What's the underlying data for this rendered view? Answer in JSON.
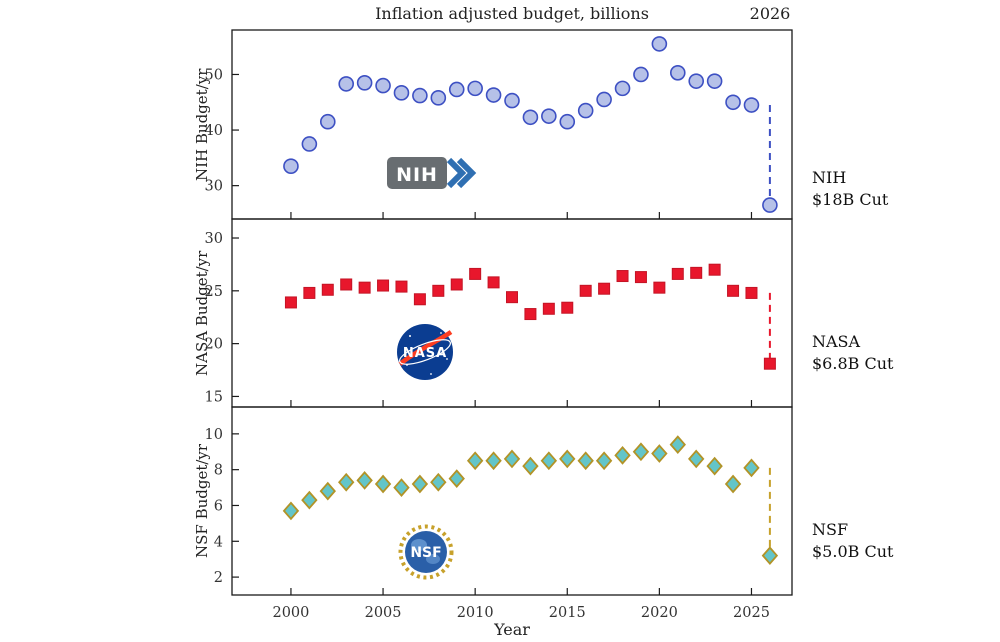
{
  "figure": {
    "label_2026": "2026"
  },
  "chart_data": [
    {
      "type": "scatter",
      "series": "NIH",
      "title": "Inflation adjusted budget, billions",
      "ylabel": "NIH Budget/yr",
      "x": [
        2000,
        2001,
        2002,
        2003,
        2004,
        2005,
        2006,
        2007,
        2008,
        2009,
        2010,
        2011,
        2012,
        2013,
        2014,
        2015,
        2016,
        2017,
        2018,
        2019,
        2020,
        2021,
        2022,
        2023,
        2024,
        2025,
        2026
      ],
      "y": [
        33.5,
        37.5,
        41.5,
        48.3,
        48.5,
        48.0,
        46.7,
        46.2,
        45.8,
        47.3,
        47.5,
        46.3,
        45.3,
        42.3,
        42.5,
        41.5,
        43.5,
        45.5,
        47.5,
        50.0,
        55.5,
        50.3,
        48.8,
        48.8,
        45.0,
        44.5,
        26.5
      ],
      "xlim": [
        1996.8,
        2027.2
      ],
      "ylim": [
        24,
        58
      ],
      "xticks": [
        2000,
        2005,
        2010,
        2015,
        2020,
        2025
      ],
      "yticks": [
        30,
        40,
        50
      ],
      "marker": "circle",
      "marker_fill": "#b6c1e8",
      "marker_edge": "#3d50c3",
      "line_color": "#3d50c3",
      "dashed_drop": {
        "x": 2026,
        "from": 44.5,
        "to": 26.5
      },
      "cut_label": {
        "line1": "NIH",
        "line2": "$18B Cut"
      }
    },
    {
      "type": "scatter",
      "series": "NASA",
      "ylabel": "NASA Budget/yr",
      "x": [
        2000,
        2001,
        2002,
        2003,
        2004,
        2005,
        2006,
        2007,
        2008,
        2009,
        2010,
        2011,
        2012,
        2013,
        2014,
        2015,
        2016,
        2017,
        2018,
        2019,
        2020,
        2021,
        2022,
        2023,
        2024,
        2025,
        2026
      ],
      "y": [
        23.9,
        24.8,
        25.1,
        25.6,
        25.3,
        25.5,
        25.4,
        24.2,
        25.0,
        25.6,
        26.6,
        25.8,
        24.4,
        22.8,
        23.3,
        23.4,
        25.0,
        25.2,
        26.4,
        26.3,
        25.3,
        26.6,
        26.7,
        27.0,
        25.0,
        24.8,
        18.1
      ],
      "xlim": [
        1996.8,
        2027.2
      ],
      "ylim": [
        14,
        31.8
      ],
      "xticks": [
        2000,
        2005,
        2010,
        2015,
        2020,
        2025
      ],
      "yticks": [
        15,
        20,
        25,
        30
      ],
      "marker": "square",
      "marker_fill": "#e8172c",
      "marker_edge": "#c41425",
      "line_color": "#e8172c",
      "dashed_drop": {
        "x": 2026,
        "from": 24.8,
        "to": 18.1
      },
      "cut_label": {
        "line1": "NASA",
        "line2": "$6.8B Cut"
      }
    },
    {
      "type": "scatter",
      "series": "NSF",
      "ylabel": "NSF Budget/yr",
      "xlabel": "Year",
      "x": [
        2000,
        2001,
        2002,
        2003,
        2004,
        2005,
        2006,
        2007,
        2008,
        2009,
        2010,
        2011,
        2012,
        2013,
        2014,
        2015,
        2016,
        2017,
        2018,
        2019,
        2020,
        2021,
        2022,
        2023,
        2024,
        2025,
        2026
      ],
      "y": [
        5.7,
        6.3,
        6.8,
        7.3,
        7.4,
        7.2,
        7.0,
        7.2,
        7.3,
        7.5,
        8.5,
        8.5,
        8.6,
        8.2,
        8.5,
        8.6,
        8.5,
        8.5,
        8.8,
        9.0,
        8.9,
        9.4,
        8.6,
        8.2,
        7.2,
        8.1,
        3.2
      ],
      "xlim": [
        1996.8,
        2027.2
      ],
      "ylim": [
        1,
        11.5
      ],
      "xticks": [
        2000,
        2005,
        2010,
        2015,
        2020,
        2025
      ],
      "yticks": [
        2,
        4,
        6,
        8,
        10
      ],
      "marker": "diamond",
      "marker_fill": "#63c5c9",
      "marker_edge": "#b29327",
      "line_color": "#c7a12b",
      "dashed_drop": {
        "x": 2026,
        "from": 8.1,
        "to": 3.2
      },
      "cut_label": {
        "line1": "NSF",
        "line2": "$5.0B Cut"
      }
    }
  ]
}
